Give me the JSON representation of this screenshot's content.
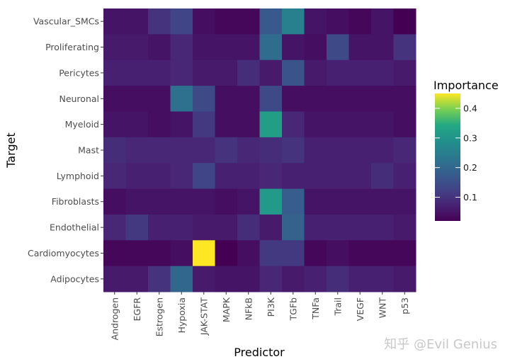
{
  "chart_data": {
    "type": "heatmap",
    "xlabel": "Predictor",
    "ylabel": "Target",
    "x": [
      "Androgen",
      "EGFR",
      "Estrogen",
      "Hypoxia",
      "JAK-STAT",
      "MAPK",
      "NFkB",
      "PI3K",
      "TGFb",
      "TNFa",
      "Trail",
      "VEGF",
      "WNT",
      "p53"
    ],
    "y": [
      "Vascular_SMCs",
      "Proliferating",
      "Pericytes",
      "Neuronal",
      "Myeloid",
      "Mast",
      "Lymphoid",
      "Fibroblasts",
      "Endothelial",
      "Cardiomyocytes",
      "Adipocytes"
    ],
    "values": [
      [
        0.05,
        0.05,
        0.1,
        0.13,
        0.04,
        0.03,
        0.03,
        0.17,
        0.25,
        0.05,
        0.04,
        0.03,
        0.05,
        0.02
      ],
      [
        0.06,
        0.06,
        0.05,
        0.08,
        0.05,
        0.05,
        0.05,
        0.21,
        0.05,
        0.04,
        0.14,
        0.05,
        0.05,
        0.1
      ],
      [
        0.07,
        0.07,
        0.07,
        0.08,
        0.06,
        0.06,
        0.09,
        0.06,
        0.16,
        0.06,
        0.07,
        0.07,
        0.07,
        0.06
      ],
      [
        0.04,
        0.04,
        0.04,
        0.22,
        0.14,
        0.04,
        0.04,
        0.14,
        0.04,
        0.04,
        0.04,
        0.04,
        0.04,
        0.04
      ],
      [
        0.05,
        0.05,
        0.04,
        0.05,
        0.11,
        0.04,
        0.04,
        0.32,
        0.08,
        0.05,
        0.05,
        0.05,
        0.05,
        0.04
      ],
      [
        0.09,
        0.08,
        0.08,
        0.08,
        0.08,
        0.1,
        0.08,
        0.09,
        0.1,
        0.07,
        0.07,
        0.07,
        0.07,
        0.08
      ],
      [
        0.08,
        0.07,
        0.07,
        0.08,
        0.13,
        0.07,
        0.07,
        0.08,
        0.07,
        0.07,
        0.07,
        0.07,
        0.09,
        0.07
      ],
      [
        0.04,
        0.05,
        0.05,
        0.05,
        0.05,
        0.04,
        0.05,
        0.31,
        0.18,
        0.05,
        0.05,
        0.05,
        0.05,
        0.05
      ],
      [
        0.08,
        0.11,
        0.07,
        0.07,
        0.06,
        0.06,
        0.09,
        0.06,
        0.19,
        0.07,
        0.07,
        0.07,
        0.07,
        0.06
      ],
      [
        0.03,
        0.03,
        0.03,
        0.04,
        0.45,
        0.02,
        0.04,
        0.11,
        0.11,
        0.03,
        0.04,
        0.03,
        0.03,
        0.03
      ],
      [
        0.06,
        0.06,
        0.1,
        0.2,
        0.06,
        0.05,
        0.05,
        0.08,
        0.06,
        0.07,
        0.09,
        0.07,
        0.07,
        0.06
      ]
    ],
    "legend": {
      "title": "Importance",
      "placement": "right",
      "ticks": [
        0.1,
        0.2,
        0.3,
        0.4
      ],
      "tick_labels": [
        "0.1",
        "0.2",
        "0.3",
        "0.4"
      ],
      "range": [
        0.02,
        0.45
      ]
    },
    "grid": true,
    "colormap": "viridis"
  },
  "watermark": "知乎 @Evil Genius"
}
